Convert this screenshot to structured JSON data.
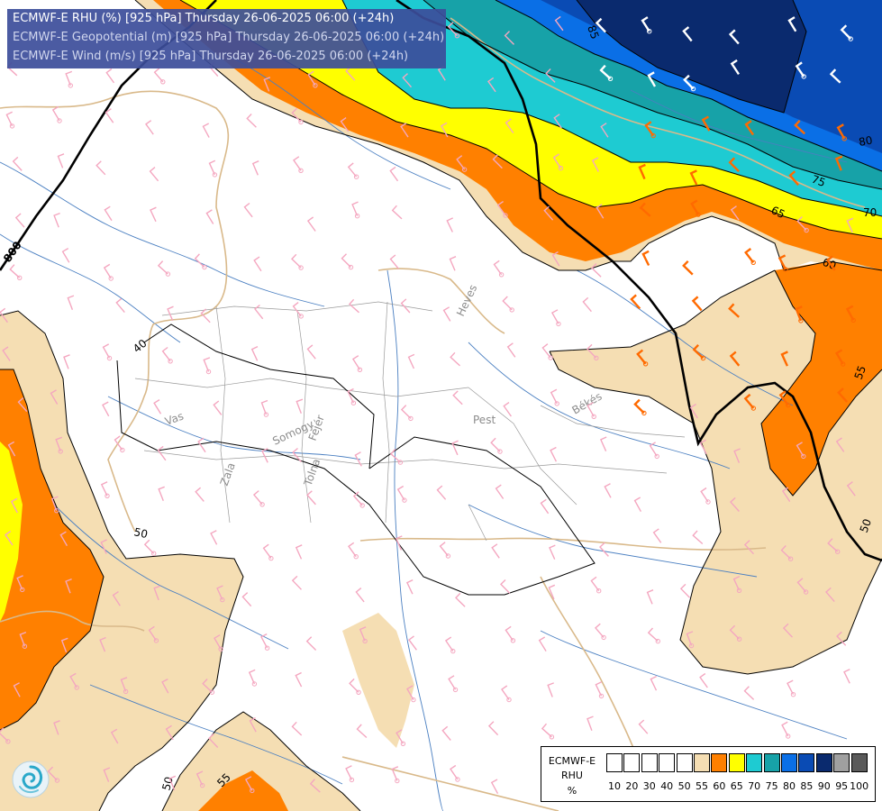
{
  "titles": {
    "line1": "ECMWF-E RHU (%) [925 hPa] Thursday 26-06-2025 06:00 (+24h)",
    "line2": "ECMWF-E Geopotential (m) [925 hPa] Thursday 26-06-2025 06:00 (+24h)",
    "line3": "ECMWF-E Wind (m/s) [925 hPa] Thursday 26-06-2025 06:00 (+24h)"
  },
  "legend": {
    "source": "ECMWF-E",
    "variable": "RHU",
    "unit": "%",
    "swatches": [
      {
        "color": "#ffffff"
      },
      {
        "color": "#ffffff"
      },
      {
        "color": "#ffffff"
      },
      {
        "color": "#ffffff"
      },
      {
        "color": "#ffffff"
      },
      {
        "color": "#f5deb3"
      },
      {
        "color": "#ff8000"
      },
      {
        "color": "#ffff00"
      },
      {
        "color": "#1ecbd2"
      },
      {
        "color": "#17a2a8"
      },
      {
        "color": "#0a6fe6"
      },
      {
        "color": "#0a4bb4"
      },
      {
        "color": "#0a2a6e"
      },
      {
        "color": "#a0a0a0"
      },
      {
        "color": "#5a5a5a"
      }
    ],
    "ticks": [
      "10",
      "20",
      "30",
      "40",
      "50",
      "55",
      "60",
      "65",
      "70",
      "75",
      "80",
      "85",
      "90",
      "95",
      "100"
    ]
  },
  "contours": {
    "rhu_labels": [
      "40",
      "50",
      "50",
      "55",
      "60",
      "65",
      "70",
      "75",
      "80",
      "85",
      "55",
      "50"
    ],
    "geopotential_labels": [
      "800"
    ]
  },
  "regions": [
    "Vas",
    "Zala",
    "Somogy",
    "Tolna",
    "Fejér",
    "Pest",
    "Heves",
    "Békés"
  ],
  "colors": {
    "rh55": "#f5deb3",
    "rh60": "#ff8000",
    "rh65": "#ffff00",
    "rh70": "#1ecbd2",
    "rh75": "#17a2a8",
    "rh80": "#0a6fe6",
    "rh85": "#0a4bb4",
    "rh90": "#0a2a6e",
    "river": "#4a7fc1",
    "border": "#d9b98a",
    "barb_light": "#f4a7c0",
    "barb_strong": "#ff6a00",
    "barb_dark": "#ffffff"
  },
  "icons": {
    "logo": "ecmwf-swirl-logo"
  }
}
